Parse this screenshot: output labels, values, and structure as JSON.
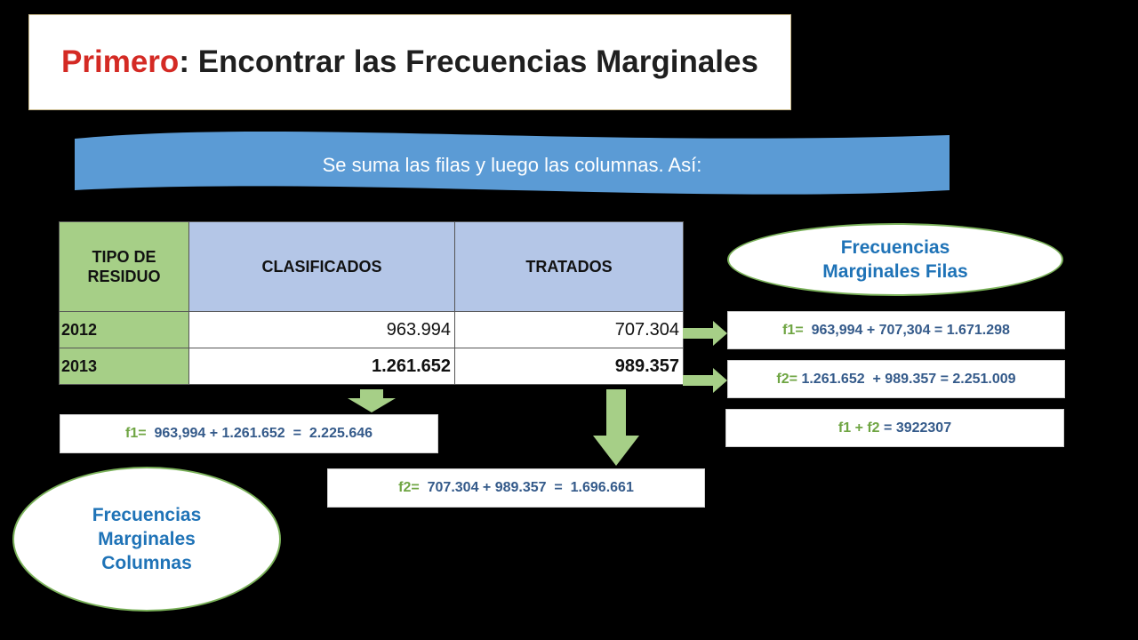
{
  "title": {
    "highlight": "Primero",
    "rest": ": Encontrar las Frecuencias Marginales"
  },
  "banner": {
    "text": "Se suma las filas y luego las columnas. Así:"
  },
  "table": {
    "headers": [
      "TIPO DE RESIDUO",
      "CLASIFICADOS",
      "TRATADOS"
    ],
    "rows": [
      {
        "year": "2012",
        "clasificados": "963.994",
        "tratados": "707.304"
      },
      {
        "year": "2013",
        "clasificados": "1.261.652",
        "tratados": "989.357"
      }
    ]
  },
  "ovals": {
    "filas": "Frecuencias Marginales Filas",
    "columnas": "Frecuencias Marginales Columnas"
  },
  "formulas": {
    "row_f1": {
      "label": "f1=",
      "expr": "  963,994 + 707,304 = 1.671.298"
    },
    "row_f2": {
      "label": "f2=",
      "expr": " 1.261.652  + 989.357 = 2.251.009"
    },
    "row_sum": {
      "label": "f1 + f2",
      "expr": " = 3922307"
    },
    "col_f1": {
      "label": "f1=",
      "expr": "  963,994 + 1.261.652  =  2.225.646"
    },
    "col_f2": {
      "label": "f2=",
      "expr": "  707.304 + 989.357  =  1.696.661"
    }
  },
  "colors": {
    "accent_red": "#d42a24",
    "banner_blue": "#5b9bd5",
    "green": "#a6cf87",
    "blue_header": "#b4c6e7",
    "text_blue": "#1f73b7"
  }
}
